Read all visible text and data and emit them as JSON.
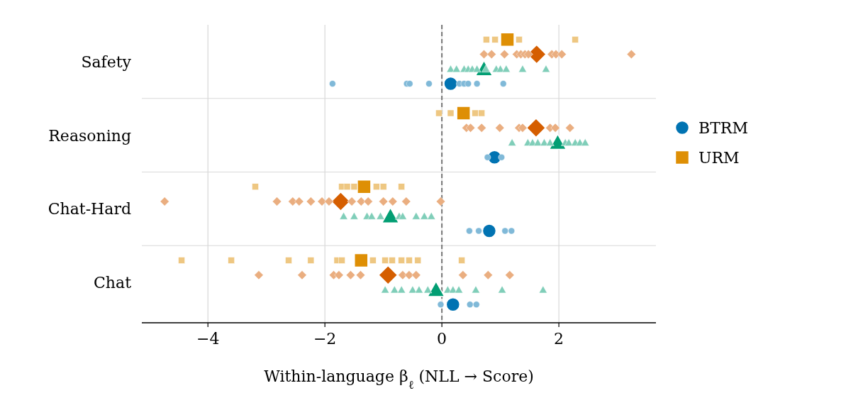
{
  "chart_data": {
    "type": "scatter",
    "orientation": "horizontal",
    "xlabel": "Within-language β$_{ℓ}$  (NLL → Score)",
    "categories": [
      "Safety",
      "Reasoning",
      "Chat-Hard",
      "Chat"
    ],
    "xlim": [
      -5.13,
      3.66
    ],
    "xticks": [
      {
        "value": -4,
        "label": "−4"
      },
      {
        "value": -2,
        "label": "−2"
      },
      0,
      2
    ],
    "grid": true,
    "legend": "right",
    "ref_lines": [
      {
        "axis": "x",
        "value": 0,
        "color": "#777777",
        "line_style": "dashed"
      }
    ],
    "series": [
      {
        "name": "BTRM",
        "color": "#0173b2",
        "marker": "circle",
        "x": [
          "Safety",
          "Reasoning",
          "Chat-Hard",
          "Chat"
        ],
        "values": [
          0.15,
          0.9,
          0.81,
          0.19
        ]
      },
      {
        "color": "#029e73",
        "marker": "triangle",
        "x": [
          "Safety",
          "Reasoning",
          "Chat-Hard",
          "Chat"
        ],
        "values": [
          0.72,
          1.98,
          -0.88,
          -0.1
        ]
      },
      {
        "color": "#d55e00",
        "marker": "diamond",
        "x": [
          "Safety",
          "Reasoning",
          "Chat-Hard",
          "Chat"
        ],
        "values": [
          1.62,
          1.61,
          -1.73,
          -0.92
        ]
      },
      {
        "name": "URM",
        "color": "#de8f05",
        "marker": "square",
        "x": [
          "Safety",
          "Reasoning",
          "Chat-Hard",
          "Chat"
        ],
        "values": [
          1.12,
          0.37,
          -1.33,
          -1.38
        ]
      },
      {
        "color": "#80b9d8",
        "marker": "circle",
        "x": [
          "Safety",
          "Safety",
          "Safety",
          "Safety",
          "Safety",
          "Safety",
          "Safety",
          "Safety",
          "Safety",
          "Reasoning",
          "Reasoning",
          "Chat-Hard",
          "Chat-Hard",
          "Chat-Hard",
          "Chat-Hard",
          "Chat",
          "Chat",
          "Chat"
        ],
        "values": [
          -1.87,
          -0.6,
          -0.55,
          -0.22,
          0.3,
          0.38,
          0.45,
          0.6,
          1.05,
          0.78,
          1.02,
          0.47,
          0.63,
          1.08,
          1.19,
          -0.02,
          0.48,
          0.59
        ]
      },
      {
        "color": "#80ceb9",
        "marker": "triangle",
        "x": [
          "Safety",
          "Safety",
          "Safety",
          "Safety",
          "Safety",
          "Safety",
          "Safety",
          "Safety",
          "Safety",
          "Safety",
          "Safety",
          "Safety",
          "Reasoning",
          "Reasoning",
          "Reasoning",
          "Reasoning",
          "Reasoning",
          "Reasoning",
          "Reasoning",
          "Reasoning",
          "Reasoning",
          "Reasoning",
          "Reasoning",
          "Chat-Hard",
          "Chat-Hard",
          "Chat-Hard",
          "Chat-Hard",
          "Chat-Hard",
          "Chat-Hard",
          "Chat-Hard",
          "Chat-Hard",
          "Chat-Hard",
          "Chat-Hard",
          "Chat",
          "Chat",
          "Chat",
          "Chat",
          "Chat",
          "Chat",
          "Chat",
          "Chat",
          "Chat",
          "Chat",
          "Chat",
          "Chat"
        ],
        "values": [
          0.15,
          0.25,
          0.38,
          0.45,
          0.52,
          0.6,
          0.75,
          0.93,
          1.0,
          1.1,
          1.38,
          1.78,
          1.2,
          1.47,
          1.55,
          1.64,
          1.75,
          1.85,
          2.11,
          2.17,
          2.28,
          2.36,
          2.45,
          -1.68,
          -1.5,
          -1.28,
          -1.2,
          -1.05,
          -0.73,
          -0.67,
          -0.44,
          -0.3,
          -0.18,
          -0.97,
          -0.81,
          -0.69,
          -0.5,
          -0.39,
          -0.24,
          0.1,
          0.19,
          0.29,
          0.58,
          1.03,
          1.73
        ]
      },
      {
        "color": "#eaae80",
        "marker": "diamond",
        "x": [
          "Safety",
          "Safety",
          "Safety",
          "Safety",
          "Safety",
          "Safety",
          "Safety",
          "Safety",
          "Safety",
          "Safety",
          "Safety",
          "Reasoning",
          "Reasoning",
          "Reasoning",
          "Reasoning",
          "Reasoning",
          "Reasoning",
          "Reasoning",
          "Reasoning",
          "Reasoning",
          "Chat-Hard",
          "Chat-Hard",
          "Chat-Hard",
          "Chat-Hard",
          "Chat-Hard",
          "Chat-Hard",
          "Chat-Hard",
          "Chat-Hard",
          "Chat-Hard",
          "Chat-Hard",
          "Chat-Hard",
          "Chat-Hard",
          "Chat-Hard",
          "Chat-Hard",
          "Chat",
          "Chat",
          "Chat",
          "Chat",
          "Chat",
          "Chat",
          "Chat",
          "Chat",
          "Chat",
          "Chat",
          "Chat",
          "Chat"
        ],
        "values": [
          0.72,
          0.85,
          1.07,
          1.28,
          1.35,
          1.42,
          1.48,
          1.88,
          1.95,
          2.05,
          3.24,
          0.42,
          0.49,
          0.68,
          0.99,
          1.32,
          1.38,
          1.85,
          1.94,
          2.19,
          -4.74,
          -2.82,
          -2.55,
          -2.44,
          -2.24,
          -2.05,
          -1.93,
          -1.54,
          -1.38,
          -1.26,
          -1.0,
          -0.84,
          -0.61,
          -0.02,
          -3.13,
          -2.39,
          -1.85,
          -1.76,
          -1.56,
          -1.39,
          -0.67,
          -0.56,
          -0.44,
          0.36,
          0.79,
          1.16
        ]
      },
      {
        "color": "#eec782",
        "marker": "square",
        "x": [
          "Safety",
          "Safety",
          "Safety",
          "Safety",
          "Reasoning",
          "Reasoning",
          "Reasoning",
          "Reasoning",
          "Chat-Hard",
          "Chat-Hard",
          "Chat-Hard",
          "Chat-Hard",
          "Chat-Hard",
          "Chat-Hard",
          "Chat-Hard",
          "Chat",
          "Chat",
          "Chat",
          "Chat",
          "Chat",
          "Chat",
          "Chat",
          "Chat",
          "Chat",
          "Chat",
          "Chat",
          "Chat",
          "Chat"
        ],
        "values": [
          0.76,
          0.91,
          1.32,
          2.28,
          -0.05,
          0.15,
          0.57,
          0.68,
          -3.19,
          -1.71,
          -1.62,
          -1.5,
          -1.12,
          -1.0,
          -0.69,
          -4.45,
          -3.6,
          -2.62,
          -2.24,
          -1.79,
          -1.71,
          -1.18,
          -0.97,
          -0.85,
          -0.69,
          -0.56,
          -0.41,
          0.34
        ]
      }
    ]
  }
}
